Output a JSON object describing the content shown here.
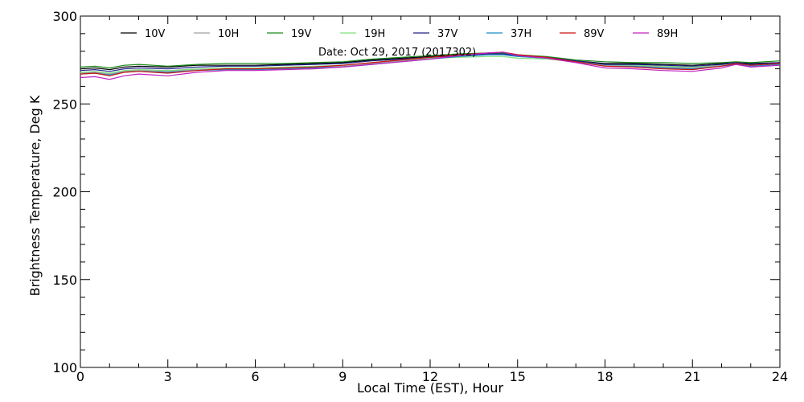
{
  "chart_data": {
    "type": "line",
    "xlabel": "Local Time (EST), Hour",
    "ylabel": "Brightness Temperature, Deg K",
    "xlim": [
      0,
      24
    ],
    "ylim": [
      100,
      300
    ],
    "x_ticks": [
      0,
      3,
      6,
      9,
      12,
      15,
      18,
      21,
      24
    ],
    "y_ticks": [
      100,
      150,
      200,
      250,
      300
    ],
    "x_minor_step": 1,
    "y_minor_step": 10,
    "grid": false,
    "legend_position": "top",
    "annotation": "Date: Oct 29, 2017 (2017302)",
    "x": [
      0,
      0.5,
      1,
      1.5,
      2,
      3,
      4,
      5,
      6,
      7,
      8,
      9,
      10,
      11,
      12,
      13,
      14,
      14.5,
      15,
      16,
      17,
      18,
      19,
      20,
      21,
      22,
      22.5,
      23,
      24
    ],
    "series": [
      {
        "name": "10V",
        "color": "#000000",
        "values": [
          270,
          270.5,
          269.5,
          271,
          271.5,
          271,
          272,
          272,
          272,
          272.5,
          273,
          273.5,
          275,
          276,
          277,
          278,
          278.5,
          278.5,
          277.5,
          276.5,
          274.5,
          273,
          273,
          272.5,
          272,
          273,
          273.5,
          273,
          273.5
        ]
      },
      {
        "name": "10H",
        "color": "#a0a0a0",
        "values": [
          267.5,
          268,
          267,
          268.5,
          269,
          268.5,
          269.5,
          270,
          270,
          270.5,
          271,
          271.5,
          273,
          274.5,
          276,
          277,
          278,
          278,
          277,
          276,
          274,
          272,
          272,
          271,
          270.5,
          272,
          273,
          272,
          273
        ]
      },
      {
        "name": "19V",
        "color": "#1a8a1a",
        "values": [
          271,
          271.5,
          270.5,
          272,
          272.5,
          271.5,
          272.5,
          273,
          273,
          273,
          273.5,
          274,
          275.5,
          276.5,
          277.5,
          278.5,
          279,
          279,
          278,
          277,
          275,
          274,
          273.5,
          273.5,
          273,
          273.5,
          274,
          273.5,
          274.5
        ]
      },
      {
        "name": "19H",
        "color": "#7ee07e",
        "values": [
          268,
          268.5,
          267.5,
          269,
          269.5,
          269,
          270,
          270.5,
          270.5,
          271,
          271.5,
          272,
          273.5,
          275,
          276,
          276.5,
          277,
          277,
          276,
          275.5,
          274,
          272.5,
          272,
          271.5,
          271,
          272.5,
          273,
          272.5,
          273
        ]
      },
      {
        "name": "37V",
        "color": "#20208a",
        "values": [
          269,
          269.5,
          268.5,
          270,
          270.5,
          270,
          271,
          271.5,
          271.5,
          272,
          272.5,
          273,
          274.5,
          275.5,
          276.5,
          277.5,
          278.5,
          278.5,
          277.5,
          276.5,
          274.5,
          272.5,
          272.5,
          272,
          271.5,
          272.5,
          273.5,
          272.5,
          273.5
        ]
      },
      {
        "name": "37H",
        "color": "#1c8cc8",
        "values": [
          267,
          267.5,
          266.5,
          268,
          268.5,
          268,
          269,
          269.5,
          269.5,
          270,
          270.5,
          271,
          272.5,
          274,
          275.5,
          277,
          278,
          278,
          277,
          276,
          274,
          271.5,
          271.5,
          270.5,
          270,
          271.5,
          272.5,
          271.5,
          272.5
        ]
      },
      {
        "name": "89V",
        "color": "#d01010",
        "values": [
          267,
          267.5,
          266,
          268,
          268.5,
          267.5,
          269,
          270,
          270,
          270.5,
          271,
          272,
          273.5,
          275,
          276.5,
          278,
          279,
          279.5,
          278,
          276.5,
          274,
          271.5,
          271,
          270,
          269.5,
          271.5,
          273,
          272,
          273
        ]
      },
      {
        "name": "89H",
        "color": "#c020c0",
        "values": [
          265,
          265.5,
          264,
          266,
          267,
          266,
          268,
          269,
          269,
          269.5,
          270,
          271,
          272.5,
          274,
          275.5,
          277.5,
          279,
          279.5,
          277.5,
          276,
          273.5,
          270.5,
          270,
          269,
          268.5,
          270.5,
          272.5,
          271,
          272
        ]
      }
    ]
  }
}
